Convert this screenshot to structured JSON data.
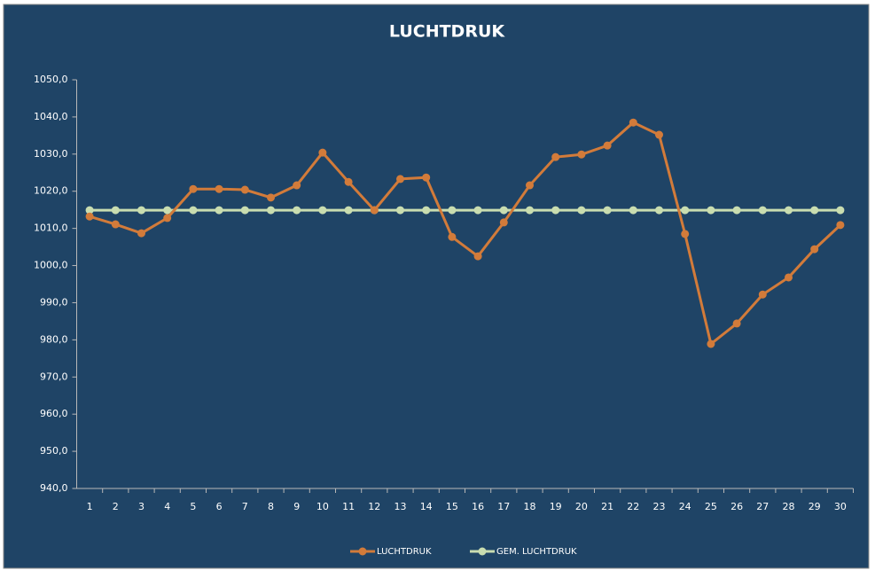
{
  "chart_data": {
    "type": "line",
    "title": "LUCHTDRUK",
    "categories": [
      "1",
      "2",
      "3",
      "4",
      "5",
      "6",
      "7",
      "8",
      "9",
      "10",
      "11",
      "12",
      "13",
      "14",
      "15",
      "16",
      "17",
      "18",
      "19",
      "20",
      "21",
      "22",
      "23",
      "24",
      "25",
      "26",
      "27",
      "28",
      "29",
      "30"
    ],
    "series": [
      {
        "name": "LUCHTDRUK",
        "color": "#d27b3a",
        "values": [
          1013.2,
          1011.1,
          1008.7,
          1012.8,
          1020.6,
          1020.6,
          1020.4,
          1018.3,
          1021.6,
          1030.4,
          1022.5,
          1014.9,
          1023.3,
          1023.7,
          1007.7,
          1002.5,
          1011.6,
          1021.6,
          1029.2,
          1029.9,
          1032.3,
          1038.5,
          1035.2,
          1008.5,
          978.9,
          984.4,
          992.2,
          996.8,
          1004.4,
          1010.9
        ]
      },
      {
        "name": "GEM. LUCHTDRUK",
        "color": "#c9ddb0",
        "values": [
          1014.9,
          1014.9,
          1014.9,
          1014.9,
          1014.9,
          1014.9,
          1014.9,
          1014.9,
          1014.9,
          1014.9,
          1014.9,
          1014.9,
          1014.9,
          1014.9,
          1014.9,
          1014.9,
          1014.9,
          1014.9,
          1014.9,
          1014.9,
          1014.9,
          1014.9,
          1014.9,
          1014.9,
          1014.9,
          1014.9,
          1014.9,
          1014.9,
          1014.9,
          1014.9
        ]
      }
    ],
    "ylim": [
      940,
      1050
    ],
    "yticks": [
      {
        "value": 940,
        "label": "940,0"
      },
      {
        "value": 950,
        "label": "950,0"
      },
      {
        "value": 960,
        "label": "960,0"
      },
      {
        "value": 970,
        "label": "970,0"
      },
      {
        "value": 980,
        "label": "980,0"
      },
      {
        "value": 990,
        "label": "990,0"
      },
      {
        "value": 1000,
        "label": "1000,0"
      },
      {
        "value": 1010,
        "label": "1010,0"
      },
      {
        "value": 1020,
        "label": "1020,0"
      },
      {
        "value": 1030,
        "label": "1030,0"
      },
      {
        "value": 1040,
        "label": "1040,0"
      },
      {
        "value": 1050,
        "label": "1050,0"
      }
    ],
    "grid": false,
    "legend": "bottom"
  }
}
